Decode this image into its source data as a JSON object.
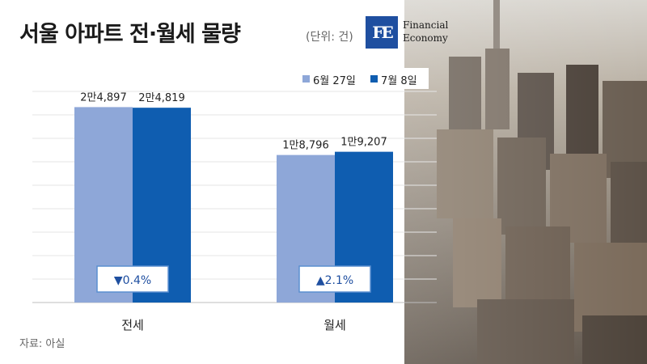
{
  "header": {
    "title": "서울 아파트 전·월세 물량",
    "unit": "(단위: 건)"
  },
  "logo": {
    "mark": "FE",
    "line1": "Financial",
    "line2": "Economy"
  },
  "legend": {
    "position": "top-right",
    "items": [
      {
        "label": "6월 27일",
        "color": "#8ea7d8"
      },
      {
        "label": "7월 8일",
        "color": "#0f5db0"
      }
    ]
  },
  "chart_data": {
    "type": "bar",
    "categories": [
      "전세",
      "월세"
    ],
    "series": [
      {
        "name": "6월 27일",
        "values": [
          24897,
          18796
        ],
        "labels": [
          "2만4,897",
          "1만8,796"
        ],
        "color": "#8ea7d8"
      },
      {
        "name": "7월 8일",
        "values": [
          24819,
          19207
        ],
        "labels": [
          "2만4,819",
          "1만9,207"
        ],
        "color": "#0f5db0"
      }
    ],
    "changes": [
      {
        "category": "전세",
        "direction": "down",
        "symbol": "▼",
        "text": "0.4%"
      },
      {
        "category": "월세",
        "direction": "up",
        "symbol": "▲",
        "text": "2.1%"
      }
    ],
    "title": "서울 아파트 전·월세 물량",
    "unit": "(단위: 건)",
    "ylim": [
      0,
      27000
    ],
    "grid": true
  },
  "source": "자료: 아실"
}
